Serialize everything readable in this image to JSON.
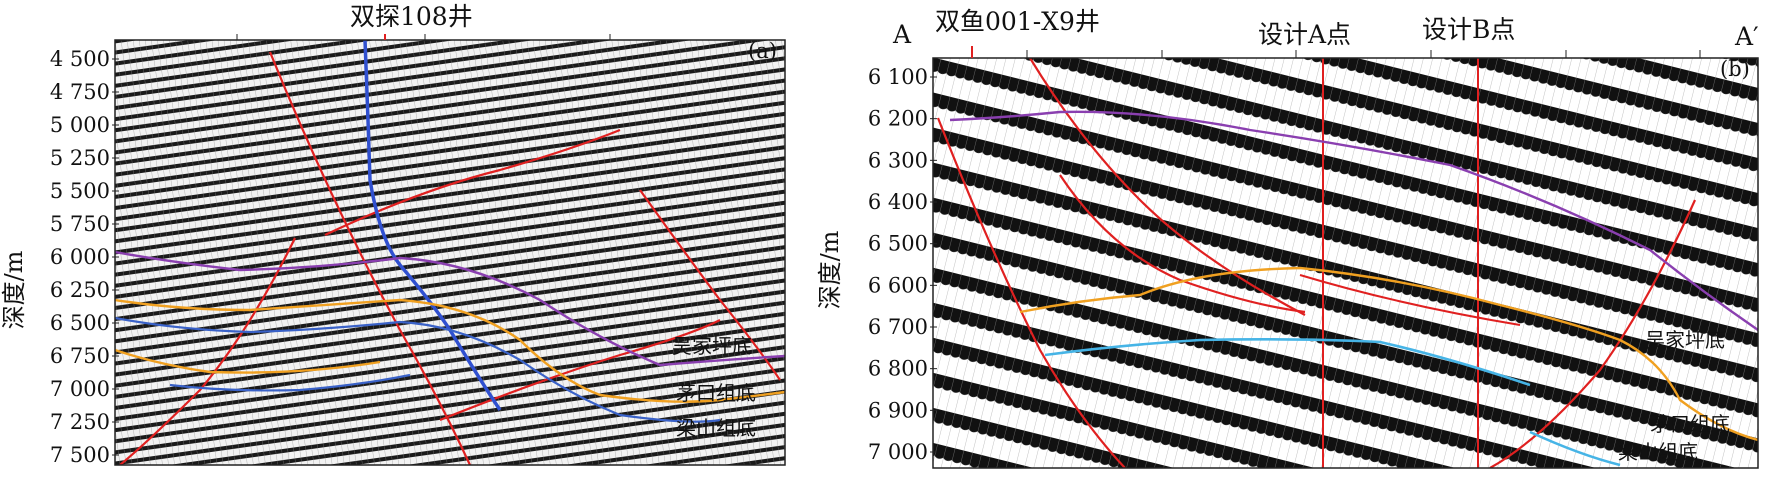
{
  "panel_a": {
    "tag": "(a)",
    "well": "双探108井",
    "ylabel": "深度/m",
    "ticks": [
      "4 500",
      "4 750",
      "5 000",
      "5 250",
      "5 500",
      "5 750",
      "6 000",
      "6 250",
      "6 500",
      "6 750",
      "7 000",
      "7 250",
      "7 500"
    ],
    "horizons": [
      "吴家坪底",
      "茅口组底",
      "梁山组底"
    ]
  },
  "panel_b": {
    "tag": "(b)",
    "left_end": "A",
    "right_end": "A′",
    "well": "双鱼001-X9井",
    "point_a": "设计A点",
    "point_b": "设计B点",
    "ylabel": "深度/m",
    "ticks": [
      "6 100",
      "6 200",
      "6 300",
      "6 400",
      "6 500",
      "6 600",
      "6 700",
      "6 800",
      "6 900",
      "7 000"
    ],
    "horizons": [
      "吴家坪底",
      "茅口组底",
      "梁山组底"
    ]
  },
  "colors": {
    "fault": "#e02020",
    "wujiaping": "#8a3fb0",
    "maokou": "#f0a020",
    "liangshan": "#3a62c8",
    "liangshan_b": "#46b4e6",
    "well_track": "#3050d0",
    "design_line": "#e02020"
  }
}
